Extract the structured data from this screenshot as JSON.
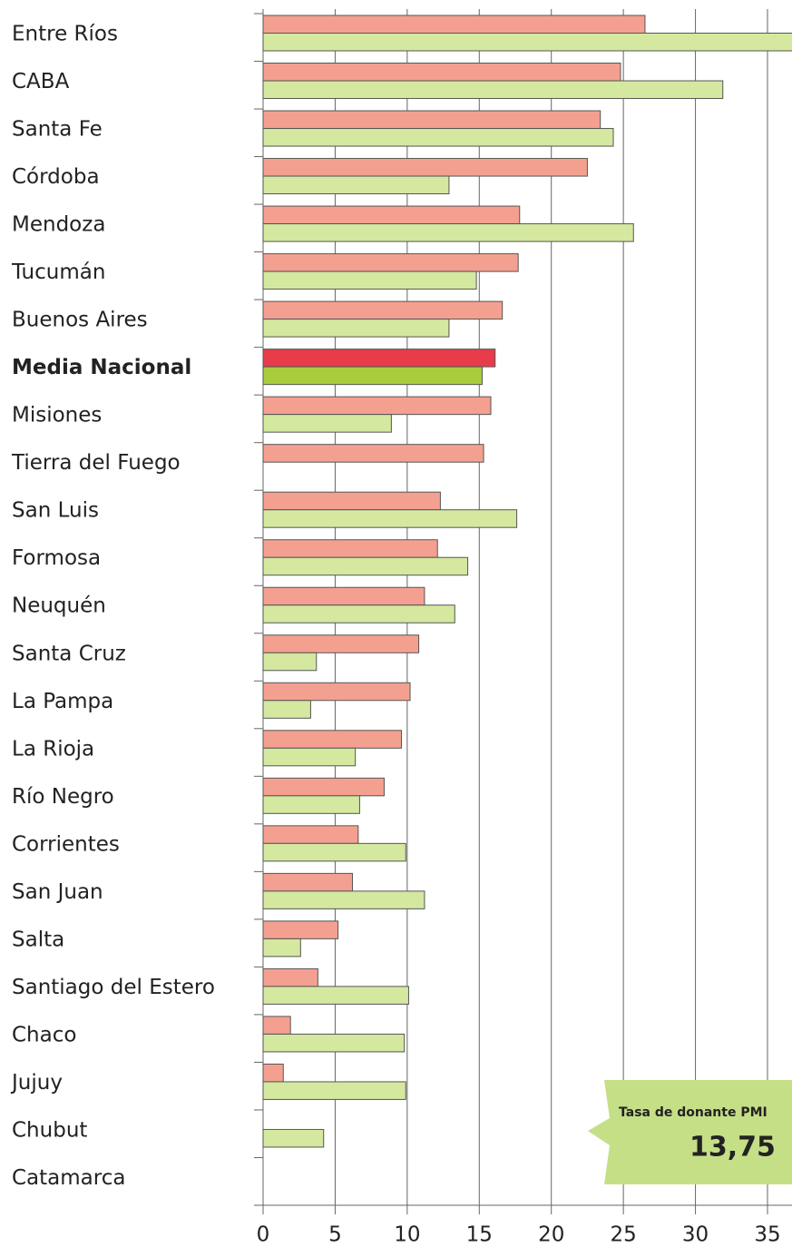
{
  "chart_data": {
    "type": "bar",
    "orientation": "horizontal",
    "categories": [
      "Entre Ríos",
      "CABA",
      "Santa Fe",
      "Córdoba",
      "Mendoza",
      "Tucumán",
      "Buenos Aires",
      "Media Nacional",
      "Misiones",
      "Tierra del Fuego",
      "San Luis",
      " Formosa",
      "Neuquén",
      "Santa Cruz",
      "La Pampa",
      "La Rioja",
      "Río Negro",
      "Corrientes",
      "San Juan",
      "Salta",
      "Santiago del Estero",
      "Chaco",
      "Jujuy",
      "Chubut",
      "Catamarca"
    ],
    "highlight": "Media Nacional",
    "series": [
      {
        "color": "#f4a090",
        "highlight_color": "#e83c4a",
        "values": [
          26.5,
          24.8,
          23.4,
          22.5,
          17.8,
          17.7,
          16.6,
          16.1,
          15.8,
          15.3,
          12.3,
          12.1,
          11.2,
          10.8,
          10.2,
          9.6,
          8.4,
          6.6,
          6.2,
          5.2,
          3.8,
          1.9,
          1.4,
          null,
          null
        ]
      },
      {
        "color": "#d4e8a0",
        "highlight_color": "#a8cc3c",
        "values": [
          37,
          31.9,
          24.3,
          12.9,
          25.7,
          14.8,
          12.9,
          15.2,
          8.9,
          null,
          17.6,
          14.2,
          13.3,
          3.7,
          3.3,
          6.4,
          6.7,
          9.9,
          11.2,
          2.6,
          10.1,
          9.8,
          9.9,
          4.2,
          null
        ]
      }
    ],
    "xlim": [
      0,
      36.7
    ],
    "xticks": [
      0,
      5,
      10,
      15,
      20,
      25,
      30,
      35
    ],
    "grid": true,
    "annotation": {
      "label": "Tasa de donante PMI",
      "value": "13,75"
    }
  }
}
